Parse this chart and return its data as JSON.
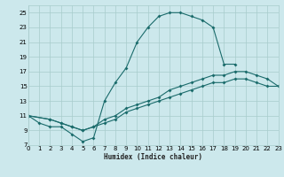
{
  "xlabel": "Humidex (Indice chaleur)",
  "bg_color": "#cce8ec",
  "grid_color": "#a8cccc",
  "line_color": "#1a6b6b",
  "xlim": [
    0,
    23
  ],
  "ylim": [
    7,
    26
  ],
  "xticks": [
    0,
    1,
    2,
    3,
    4,
    5,
    6,
    7,
    8,
    9,
    10,
    11,
    12,
    13,
    14,
    15,
    16,
    17,
    18,
    19,
    20,
    21,
    22,
    23
  ],
  "yticks": [
    7,
    9,
    11,
    13,
    15,
    17,
    19,
    21,
    23,
    25
  ],
  "line1_x": [
    0,
    1,
    2,
    3,
    4,
    5,
    6,
    7,
    8,
    9,
    10,
    11,
    12,
    13,
    14,
    15,
    16,
    17,
    18,
    19
  ],
  "line1_y": [
    11,
    10,
    9.5,
    9.5,
    8.5,
    7.5,
    8,
    13,
    15.5,
    17.5,
    21,
    23,
    24.5,
    25,
    25,
    24.5,
    24,
    23,
    18,
    18
  ],
  "line2_x": [
    0,
    2,
    3,
    4,
    5,
    6,
    7,
    8,
    9,
    10,
    11,
    12,
    13,
    14,
    15,
    16,
    17,
    18,
    19,
    20,
    21,
    22,
    23
  ],
  "line2_y": [
    11,
    10.5,
    10,
    9.5,
    9,
    9.5,
    10.5,
    11,
    12,
    12.5,
    13,
    13.5,
    14.5,
    15,
    15.5,
    16,
    16.5,
    16.5,
    17,
    17,
    16.5,
    16,
    15
  ],
  "line3_x": [
    0,
    2,
    3,
    4,
    5,
    6,
    7,
    8,
    9,
    10,
    11,
    12,
    13,
    14,
    15,
    16,
    17,
    18,
    19,
    20,
    21,
    22,
    23
  ],
  "line3_y": [
    11,
    10.5,
    10,
    9.5,
    9,
    9.5,
    10,
    10.5,
    11.5,
    12,
    12.5,
    13,
    13.5,
    14,
    14.5,
    15,
    15.5,
    15.5,
    16,
    16,
    15.5,
    15,
    15
  ]
}
